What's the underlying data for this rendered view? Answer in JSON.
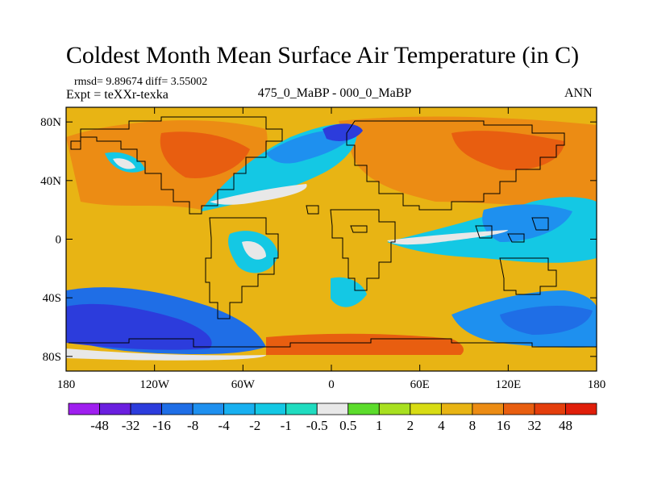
{
  "chart_data": {
    "type": "heatmap",
    "title": "Coldest Month Mean Surface Air Temperature (in C)",
    "stats": {
      "rmsd_text": "rmsd= 9.89674 diff= 3.55002"
    },
    "experiment": "Expt = teXXr-texka",
    "center_label": "475_0_MaBP - 000_0_MaBP",
    "season": "ANN",
    "x_axis": {
      "range": [
        -180,
        180
      ],
      "ticks": [
        -180,
        -120,
        -60,
        0,
        60,
        120,
        180
      ],
      "tick_labels": [
        "180",
        "120W",
        "60W",
        "0",
        "60E",
        "120E",
        "180"
      ]
    },
    "y_axis": {
      "range": [
        -90,
        90
      ],
      "ticks": [
        80,
        40,
        0,
        -40,
        -80
      ],
      "tick_labels": [
        "80N",
        "40N",
        "0",
        "40S",
        "80S"
      ]
    },
    "colorbar": {
      "levels": [
        "-48",
        "-32",
        "-16",
        "-8",
        "-4",
        "-2",
        "-1",
        "-0.5",
        "0.5",
        "1",
        "2",
        "4",
        "8",
        "16",
        "32",
        "48"
      ],
      "colors": [
        "#9f1fef",
        "#6a1fdf",
        "#2c3cdc",
        "#1f6ee6",
        "#1e90ef",
        "#18b0f0",
        "#14c8e4",
        "#20dcc0",
        "#e8e8e8",
        "#5cdc2c",
        "#a8e020",
        "#d8dc14",
        "#e8b414",
        "#ec8c14",
        "#e85e10",
        "#e43e0c",
        "#e01e0a"
      ]
    }
  }
}
